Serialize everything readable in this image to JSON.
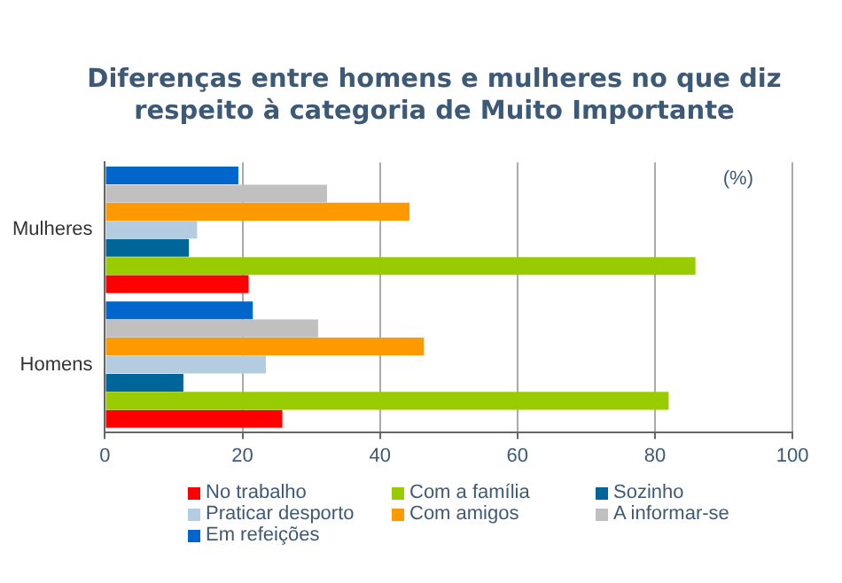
{
  "chart_data": {
    "type": "bar",
    "orientation": "horizontal",
    "title": "Diferenças entre homens e mulheres no que diz respeito à categoria de Muito Importante",
    "categories": [
      "Mulheres",
      "Homens"
    ],
    "series": [
      {
        "name": "No trabalho",
        "color": "#ff0000",
        "values": [
          20.9,
          25.8
        ]
      },
      {
        "name": "Com a família",
        "color": "#99cc00",
        "values": [
          85.9,
          82.0
        ]
      },
      {
        "name": "Sozinho",
        "color": "#006699",
        "values": [
          12.2,
          11.4
        ]
      },
      {
        "name": "Praticar desporto",
        "color": "#b4cce0",
        "values": [
          13.4,
          23.4
        ]
      },
      {
        "name": "Com amigos",
        "color": "#ff9900",
        "values": [
          44.3,
          46.4
        ]
      },
      {
        "name": "A informar-se",
        "color": "#c0c0c0",
        "values": [
          32.3,
          31.0
        ]
      },
      {
        "name": "Em refeições",
        "color": "#0066cc",
        "values": [
          19.4,
          21.5
        ]
      }
    ],
    "xlim": [
      0,
      100
    ],
    "xticks": [
      0,
      20,
      40,
      60,
      80,
      100
    ],
    "grid": "x",
    "legend": "bottom",
    "annotations": [
      "(%)"
    ]
  }
}
